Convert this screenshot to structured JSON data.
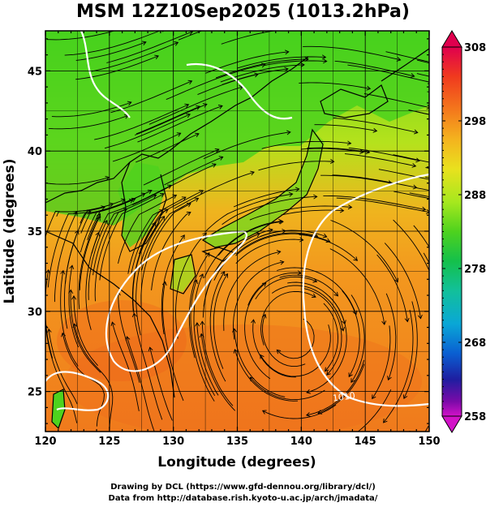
{
  "title": "MSM 12Z10Sep2025 (1013.2hPa)",
  "x_axis": {
    "title": "Longitude (degrees)",
    "ticks": [
      "120",
      "125",
      "130",
      "135",
      "140",
      "145",
      "150"
    ],
    "range": [
      120,
      150
    ]
  },
  "y_axis": {
    "title": "Latitude  (degrees)",
    "ticks": [
      "25",
      "30",
      "35",
      "40",
      "45"
    ],
    "range": [
      22.5,
      47.5
    ]
  },
  "colorbar": {
    "labels": [
      "308",
      "298",
      "288",
      "278",
      "268",
      "258"
    ],
    "colors": [
      "#e0004e",
      "#f03a1e",
      "#f4781c",
      "#f4b31e",
      "#e9e11e",
      "#a6e81e",
      "#4ed21e",
      "#14c04b",
      "#12c09a",
      "#0aa7d6",
      "#0a5fd2",
      "#1e1ea0",
      "#7a0aa8",
      "#d212c8"
    ]
  },
  "contour_label": "1010",
  "credits": [
    "Drawing by DCL (https://www.gfd-dennou.org/library/dcl/)",
    "Data from http://database.rish.kyoto-u.ac.jp/arch/jmadata/"
  ]
}
